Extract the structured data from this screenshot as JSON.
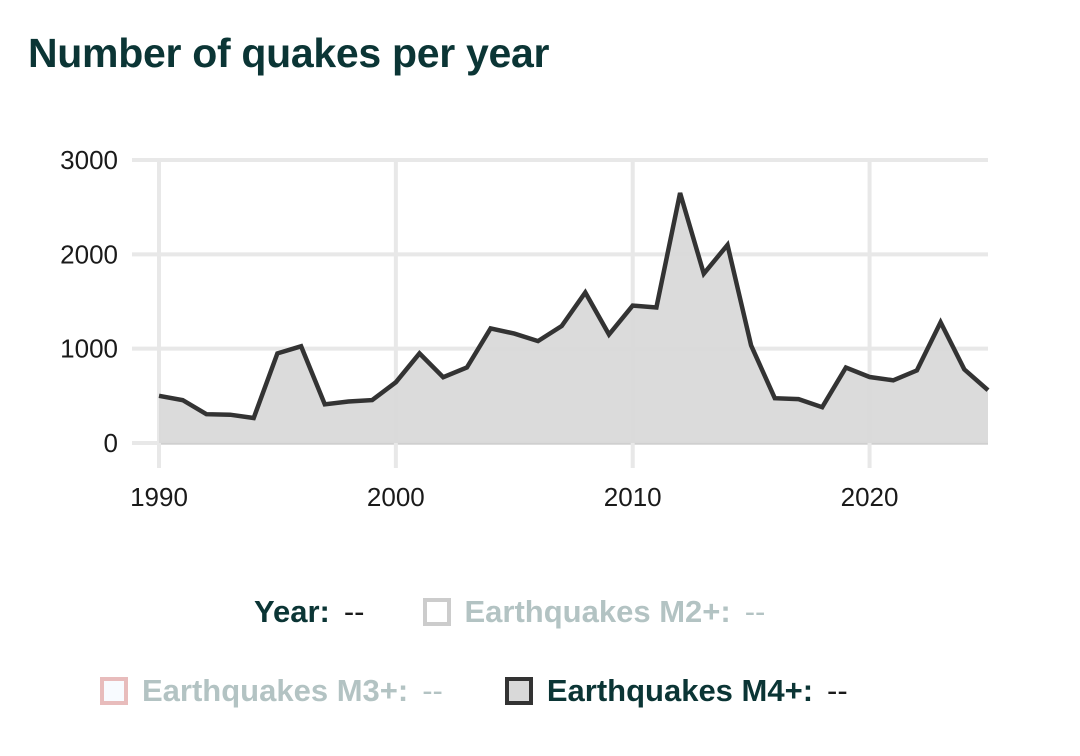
{
  "title": "Number of quakes per year",
  "chart_data": {
    "type": "area",
    "title": "Number of quakes per year",
    "xlabel": "",
    "ylabel": "",
    "xlim": [
      1990,
      2025
    ],
    "ylim": [
      0,
      3000
    ],
    "grid": true,
    "x_ticks": [
      1990,
      2000,
      2010,
      2020
    ],
    "x_tick_labels": [
      "1990",
      "2000",
      "2010",
      "2020"
    ],
    "y_ticks": [
      0,
      1000,
      2000,
      3000
    ],
    "y_tick_labels": [
      "0",
      "1000",
      "2000",
      "3000"
    ],
    "x": [
      1990,
      1991,
      1992,
      1993,
      1994,
      1995,
      1996,
      1997,
      1998,
      1999,
      2000,
      2001,
      2002,
      2003,
      2004,
      2005,
      2006,
      2007,
      2008,
      2009,
      2010,
      2011,
      2012,
      2013,
      2014,
      2015,
      2016,
      2017,
      2018,
      2019,
      2020,
      2021,
      2022,
      2023,
      2024,
      2025
    ],
    "series": [
      {
        "name": "Earthquakes M4+",
        "visible": true,
        "line_color": "#333333",
        "fill_color": "#d9d9d9",
        "values": [
          500,
          455,
          305,
          300,
          265,
          950,
          1025,
          410,
          440,
          455,
          645,
          950,
          697,
          800,
          1215,
          1160,
          1080,
          1240,
          1595,
          1150,
          1457,
          1436,
          2650,
          1795,
          2100,
          1035,
          475,
          465,
          380,
          800,
          700,
          665,
          770,
          1280,
          780,
          560
        ]
      }
    ],
    "legend": {
      "placement": "bottom",
      "year_label": "Year:",
      "year_value": "--",
      "items": [
        {
          "label": "Earthquakes M2+:",
          "value": "--",
          "active": false,
          "box_border": "#cccccc",
          "box_fill": "#ffffff"
        },
        {
          "label": "Earthquakes M3+:",
          "value": "--",
          "active": false,
          "box_border": "#e8bcbc",
          "box_fill": "#f8fbff"
        },
        {
          "label": "Earthquakes M4+:",
          "value": "--",
          "active": true,
          "box_border": "#333333",
          "box_fill": "#d9d9d9"
        }
      ]
    }
  }
}
